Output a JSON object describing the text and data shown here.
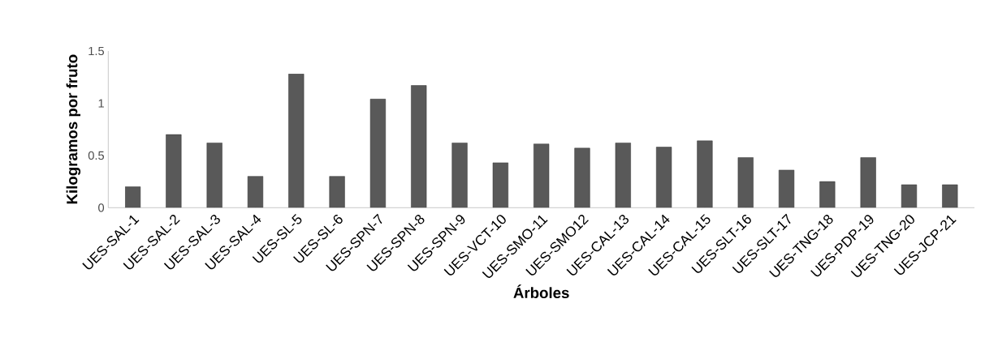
{
  "chart_data": {
    "type": "bar",
    "xlabel": "Árboles",
    "ylabel": "Kilogramos por fruto",
    "categories": [
      "UES-SAL-1",
      "UES-SAL-2",
      "UES-SAL-3",
      "UES-SAL-4",
      "UES-SL-5",
      "UES-SL-6",
      "UES-SPN-7",
      "UES-SPN-8",
      "UES-SPN-9",
      "UES-VCT-10",
      "UES-SMO-11",
      "UES-SMO12",
      "UES-CAL-13",
      "UES-CAL-14",
      "UES-CAL-15",
      "UES-SLT-16",
      "UES-SLT-17",
      "UES-TNG-18",
      "UES-PDP-19",
      "UES-TNG-20",
      "UES-JCP-21"
    ],
    "values": [
      0.2,
      0.7,
      0.62,
      0.3,
      1.28,
      0.3,
      1.04,
      1.17,
      0.62,
      0.43,
      0.61,
      0.57,
      0.62,
      0.58,
      0.64,
      0.48,
      0.36,
      0.25,
      0.48,
      0.22,
      0.22
    ],
    "color": "#595959",
    "ylim": [
      0,
      1.5
    ],
    "yticks": [
      0,
      0.5,
      1,
      1.5
    ],
    "grid": false
  }
}
